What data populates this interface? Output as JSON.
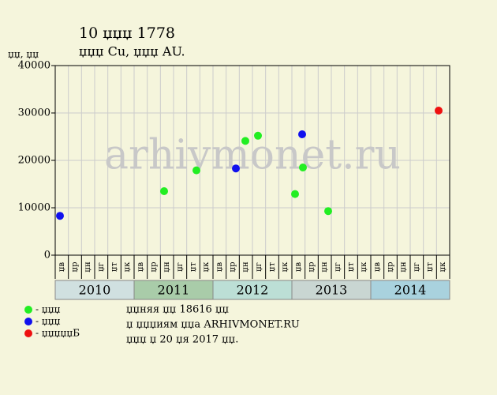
{
  "chart_data": {
    "type": "scatter",
    "title": "10 џџџ 1778",
    "subtitle": "џџџ Cu, џџџ AU.",
    "y_label": "џџ, џџ",
    "watermark": "arhivmonet.ru",
    "xlim": [
      2010,
      2015
    ],
    "ylim": [
      0,
      40000
    ],
    "yticks": [
      0,
      10000,
      20000,
      30000,
      40000
    ],
    "grid": true,
    "years": [
      {
        "value": 2010,
        "label": "2010",
        "color": "#d0e0e0"
      },
      {
        "value": 2011,
        "label": "2011",
        "color": "#a9cca9"
      },
      {
        "value": 2012,
        "label": "2012",
        "color": "#bcdfd6"
      },
      {
        "value": 2013,
        "label": "2013",
        "color": "#c9d6d2"
      },
      {
        "value": 2014,
        "label": "2014",
        "color": "#a9d2de"
      }
    ],
    "periods": [
      "џв",
      "џр",
      "џн",
      "џг",
      "џт",
      "џк",
      "џв",
      "џр",
      "џн",
      "џг",
      "џт",
      "џк",
      "џв",
      "џр",
      "џн",
      "џг",
      "џт",
      "џк",
      "џв",
      "џр",
      "џн",
      "џг",
      "џт",
      "џк",
      "џв",
      "џр",
      "џн",
      "џг",
      "џт",
      "џк"
    ],
    "series": [
      {
        "name": "- џџџ",
        "color": "#22ee22",
        "x": [
          2011.38,
          2011.79,
          2012.41,
          2012.57,
          2013.04,
          2013.14,
          2013.46
        ],
        "values": [
          13500,
          17900,
          24100,
          25200,
          12900,
          18500,
          9300
        ]
      },
      {
        "name": "- џџџ",
        "color": "#1010ee",
        "x": [
          2010.06,
          2012.29,
          2013.13
        ],
        "values": [
          8300,
          18300,
          25500
        ]
      },
      {
        "name": "- џџџџџБ",
        "color": "#ee1010",
        "x": [
          2014.86
        ],
        "values": [
          30500
        ]
      }
    ],
    "notes": [
      "џџняя џџ 18616 џџ",
      "џ џџџиям џџа ARHIVMONET.RU",
      "џџџ џ 20 џя 2017 џџ."
    ]
  }
}
